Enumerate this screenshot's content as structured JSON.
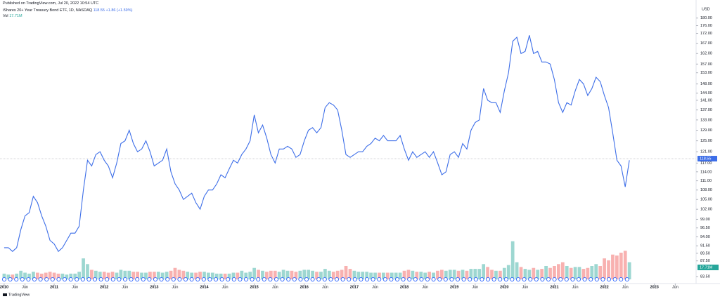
{
  "header": {
    "published": "Published on TradingView.com, Jul 20, 2022 10:54 UTC",
    "change": "+1.86 (+1.59%)",
    "currency": "USD",
    "logo": "TradingView"
  },
  "chart_data": {
    "type": "line",
    "x": [
      "2010-01",
      "2010-02",
      "2010-03",
      "2010-04",
      "2010-05",
      "2010-06",
      "2010-07",
      "2010-08",
      "2010-09",
      "2010-10",
      "2010-11",
      "2010-12",
      "2011-01",
      "2011-02",
      "2011-03",
      "2011-04",
      "2011-05",
      "2011-06",
      "2011-07",
      "2011-08",
      "2011-09",
      "2011-10",
      "2011-11",
      "2011-12",
      "2012-01",
      "2012-02",
      "2012-03",
      "2012-04",
      "2012-05",
      "2012-06",
      "2012-07",
      "2012-08",
      "2012-09",
      "2012-10",
      "2012-11",
      "2012-12",
      "2013-01",
      "2013-02",
      "2013-03",
      "2013-04",
      "2013-05",
      "2013-06",
      "2013-07",
      "2013-08",
      "2013-09",
      "2013-10",
      "2013-11",
      "2013-12",
      "2014-01",
      "2014-02",
      "2014-03",
      "2014-04",
      "2014-05",
      "2014-06",
      "2014-07",
      "2014-08",
      "2014-09",
      "2014-10",
      "2014-11",
      "2014-12",
      "2015-01",
      "2015-02",
      "2015-03",
      "2015-04",
      "2015-05",
      "2015-06",
      "2015-07",
      "2015-08",
      "2015-09",
      "2015-10",
      "2015-11",
      "2015-12",
      "2016-01",
      "2016-02",
      "2016-03",
      "2016-04",
      "2016-05",
      "2016-06",
      "2016-07",
      "2016-08",
      "2016-09",
      "2016-10",
      "2016-11",
      "2016-12",
      "2017-01",
      "2017-02",
      "2017-03",
      "2017-04",
      "2017-05",
      "2017-06",
      "2017-07",
      "2017-08",
      "2017-09",
      "2017-10",
      "2017-11",
      "2017-12",
      "2018-01",
      "2018-02",
      "2018-03",
      "2018-04",
      "2018-05",
      "2018-06",
      "2018-07",
      "2018-08",
      "2018-09",
      "2018-10",
      "2018-11",
      "2018-12",
      "2019-01",
      "2019-02",
      "2019-03",
      "2019-04",
      "2019-05",
      "2019-06",
      "2019-07",
      "2019-08",
      "2019-09",
      "2019-10",
      "2019-11",
      "2019-12",
      "2020-01",
      "2020-02",
      "2020-03",
      "2020-04",
      "2020-05",
      "2020-06",
      "2020-07",
      "2020-08",
      "2020-09",
      "2020-10",
      "2020-11",
      "2020-12",
      "2021-01",
      "2021-02",
      "2021-03",
      "2021-04",
      "2021-05",
      "2021-06",
      "2021-07",
      "2021-08",
      "2021-09",
      "2021-10",
      "2021-11",
      "2021-12",
      "2022-01",
      "2022-02",
      "2022-03",
      "2022-04",
      "2022-05",
      "2022-06",
      "2022-07"
    ],
    "series": [
      {
        "name": "iShares 20+ Year Treasury Bond ETF, 1D, NASDAQ",
        "color": "#3d6ee8",
        "values": [
          91,
          91,
          90,
          91,
          96,
          100,
          101,
          106,
          104,
          100,
          97,
          93,
          92,
          90,
          91,
          93,
          95,
          95,
          97,
          108,
          118,
          116,
          120,
          121,
          118,
          116,
          112,
          117,
          124,
          125,
          129,
          124,
          121,
          122,
          125,
          121,
          116,
          117,
          118,
          122,
          114,
          110,
          108,
          105,
          106,
          107,
          104,
          102,
          106,
          108,
          108,
          110,
          113,
          112,
          115,
          118,
          117,
          120,
          122,
          125,
          135,
          128,
          131,
          126,
          120,
          117,
          122,
          122,
          123,
          122,
          119,
          120,
          125,
          129,
          130,
          128,
          130,
          138,
          140,
          139,
          137,
          129,
          120,
          119,
          120,
          121,
          121,
          123,
          124,
          126,
          125,
          127,
          125,
          125,
          125,
          127,
          122,
          118,
          121,
          119,
          120,
          121,
          119,
          121,
          117,
          113,
          114,
          120,
          121,
          119,
          124,
          122,
          129,
          132,
          133,
          146,
          141,
          140,
          140,
          136,
          145,
          153,
          168,
          170,
          162,
          163,
          171,
          162,
          163,
          158,
          158,
          157,
          150,
          140,
          136,
          140,
          139,
          145,
          150,
          148,
          143,
          146,
          151,
          149,
          143,
          138,
          128,
          118,
          116,
          109,
          118
        ]
      },
      {
        "name": "Vol",
        "axis": "y2",
        "up_color": "#26a69a",
        "down_color": "#ef5350",
        "values": [
          6,
          5,
          5,
          6,
          9,
          7,
          6,
          8,
          7,
          6,
          7,
          8,
          7,
          6,
          6,
          5,
          6,
          6,
          8,
          22,
          16,
          10,
          9,
          8,
          8,
          7,
          8,
          7,
          10,
          9,
          9,
          8,
          8,
          7,
          7,
          8,
          8,
          8,
          7,
          8,
          9,
          12,
          10,
          9,
          8,
          7,
          7,
          8,
          8,
          7,
          7,
          6,
          6,
          6,
          6,
          7,
          7,
          9,
          7,
          8,
          12,
          10,
          9,
          8,
          9,
          9,
          8,
          10,
          9,
          9,
          8,
          9,
          10,
          10,
          9,
          8,
          8,
          11,
          9,
          8,
          9,
          10,
          14,
          11,
          9,
          8,
          8,
          8,
          7,
          7,
          7,
          7,
          7,
          7,
          7,
          7,
          9,
          10,
          9,
          8,
          8,
          7,
          8,
          7,
          9,
          10,
          9,
          10,
          10,
          9,
          10,
          9,
          11,
          11,
          11,
          16,
          13,
          10,
          9,
          9,
          12,
          15,
          40,
          18,
          13,
          11,
          10,
          12,
          10,
          11,
          14,
          12,
          14,
          16,
          18,
          14,
          12,
          13,
          13,
          11,
          12,
          14,
          16,
          14,
          22,
          20,
          26,
          25,
          28,
          30,
          18
        ]
      }
    ],
    "last_price": 118.55,
    "last_volume_label": "17.71M",
    "xlim": [
      "2009-12",
      "2023-11"
    ],
    "xticks": [
      {
        "value": "2010-01",
        "label": "2010"
      },
      {
        "value": "2010-06",
        "label": "Jun"
      },
      {
        "value": "2011-01",
        "label": "2011"
      },
      {
        "value": "2011-06",
        "label": "Jun"
      },
      {
        "value": "2012-01",
        "label": "2012"
      },
      {
        "value": "2012-06",
        "label": "Jun"
      },
      {
        "value": "2013-01",
        "label": "2013"
      },
      {
        "value": "2013-06",
        "label": "Jun"
      },
      {
        "value": "2014-01",
        "label": "2014"
      },
      {
        "value": "2014-06",
        "label": "Jun"
      },
      {
        "value": "2015-01",
        "label": "2015"
      },
      {
        "value": "2015-06",
        "label": "Jun"
      },
      {
        "value": "2016-01",
        "label": "2016"
      },
      {
        "value": "2016-06",
        "label": "Jun"
      },
      {
        "value": "2017-01",
        "label": "2017"
      },
      {
        "value": "2017-06",
        "label": "Jun"
      },
      {
        "value": "2018-01",
        "label": "2018"
      },
      {
        "value": "2018-06",
        "label": "Jun"
      },
      {
        "value": "2019-01",
        "label": "2019"
      },
      {
        "value": "2019-06",
        "label": "Jun"
      },
      {
        "value": "2020-01",
        "label": "2020"
      },
      {
        "value": "2020-06",
        "label": "Jun"
      },
      {
        "value": "2021-01",
        "label": "2021"
      },
      {
        "value": "2021-06",
        "label": "Jun"
      },
      {
        "value": "2022-01",
        "label": "2022"
      },
      {
        "value": "2022-06",
        "label": "Jun"
      },
      {
        "value": "2023-01",
        "label": "2023"
      },
      {
        "value": "2023-06",
        "label": "Jun"
      }
    ],
    "ylim": [
      81.8,
      186
    ],
    "log_scale": true,
    "grid": false,
    "yticks": [
      {
        "value": 180,
        "label": "180.00"
      },
      {
        "value": 176,
        "label": "176.00"
      },
      {
        "value": 172,
        "label": "172.00"
      },
      {
        "value": 167,
        "label": "167.00"
      },
      {
        "value": 162,
        "label": "162.00"
      },
      {
        "value": 157,
        "label": "157.00"
      },
      {
        "value": 153,
        "label": "153.00"
      },
      {
        "value": 148,
        "label": "148.00"
      },
      {
        "value": 144,
        "label": "144.00"
      },
      {
        "value": 141,
        "label": "141.00"
      },
      {
        "value": 137,
        "label": "137.00"
      },
      {
        "value": 133,
        "label": "133.00"
      },
      {
        "value": 129,
        "label": "129.00"
      },
      {
        "value": 125,
        "label": "125.00"
      },
      {
        "value": 121,
        "label": "121.00"
      },
      {
        "value": 117,
        "label": "117.00"
      },
      {
        "value": 114,
        "label": "114.00"
      },
      {
        "value": 111,
        "label": "111.00"
      },
      {
        "value": 108,
        "label": "108.00"
      },
      {
        "value": 105,
        "label": "105.00"
      },
      {
        "value": 102,
        "label": "102.00"
      },
      {
        "value": 99,
        "label": "99.00"
      },
      {
        "value": 96.5,
        "label": "96.50"
      },
      {
        "value": 94,
        "label": "94.00"
      },
      {
        "value": 91.5,
        "label": "91.50"
      },
      {
        "value": 89.5,
        "label": "89.50"
      },
      {
        "value": 87.5,
        "label": "87.50"
      },
      {
        "value": 83.5,
        "label": "83.50"
      }
    ],
    "y2lim": [
      0,
      70
    ]
  }
}
